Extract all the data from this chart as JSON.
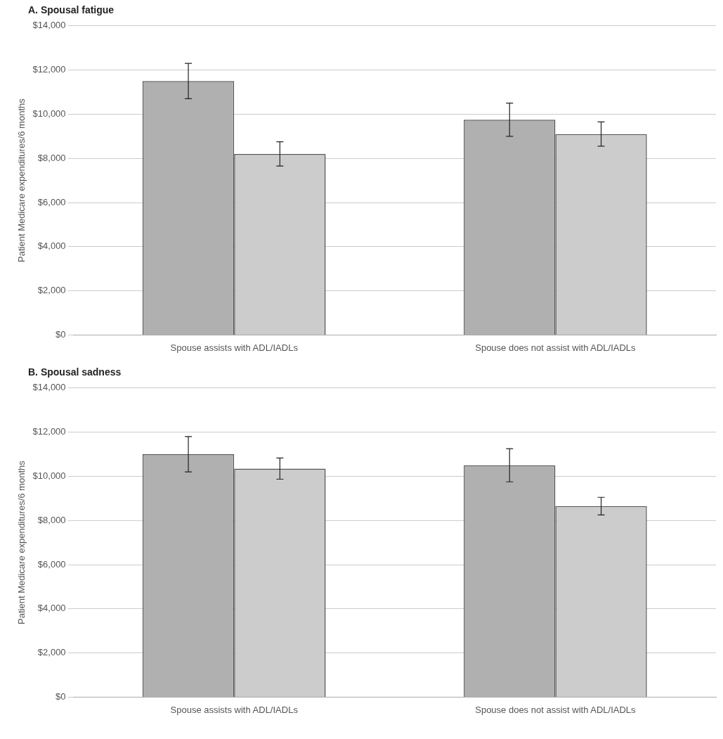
{
  "chart_data": [
    {
      "type": "bar",
      "title": "A. Spousal fatigue",
      "ylabel": "Patient Medicare expenditures/6 months",
      "categories": [
        "Spouse assists with ADL/IADLs",
        "Spouse does not assist with ADL/IADLs"
      ],
      "series": [
        {
          "color": "#b0b0b0",
          "values": [
            11500,
            9750
          ],
          "errors": [
            800,
            750
          ]
        },
        {
          "color": "#cccccc",
          "values": [
            8200,
            9100
          ],
          "errors": [
            550,
            550
          ]
        }
      ],
      "ylim": [
        0,
        14000
      ],
      "yticks": [
        {
          "value": 0,
          "label": "$0"
        },
        {
          "value": 2000,
          "label": "$2,000"
        },
        {
          "value": 4000,
          "label": "$4,000"
        },
        {
          "value": 6000,
          "label": "$6,000"
        },
        {
          "value": 8000,
          "label": "$8,000"
        },
        {
          "value": 10000,
          "label": "$10,000"
        },
        {
          "value": 12000,
          "label": "$12,000"
        },
        {
          "value": 14000,
          "label": "$14,000"
        }
      ],
      "grid": "y",
      "legend": false
    },
    {
      "type": "bar",
      "title": "B. Spousal sadness",
      "ylabel": "Patient Medicare expenditures/6 months",
      "categories": [
        "Spouse assists with ADL/IADLs",
        "Spouse does not assist with ADL/IADLs"
      ],
      "series": [
        {
          "color": "#b0b0b0",
          "values": [
            11000,
            10500
          ],
          "errors": [
            800,
            750
          ]
        },
        {
          "color": "#cccccc",
          "values": [
            10350,
            8650
          ],
          "errors": [
            480,
            400
          ]
        }
      ],
      "ylim": [
        0,
        14000
      ],
      "yticks": [
        {
          "value": 0,
          "label": "$0"
        },
        {
          "value": 2000,
          "label": "$2,000"
        },
        {
          "value": 4000,
          "label": "$4,000"
        },
        {
          "value": 6000,
          "label": "$6,000"
        },
        {
          "value": 8000,
          "label": "$8,000"
        },
        {
          "value": 10000,
          "label": "$10,000"
        },
        {
          "value": 12000,
          "label": "$12,000"
        },
        {
          "value": 14000,
          "label": "$14,000"
        }
      ],
      "grid": "y",
      "legend": false
    }
  ]
}
